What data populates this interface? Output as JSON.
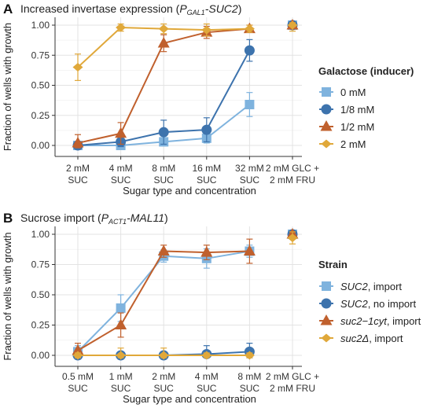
{
  "chart_data": [
    {
      "type": "line",
      "panel_letter": "A",
      "title_prefix": "Increased invertase expression (",
      "title_promoter_main": "P",
      "title_promoter_sub": "GAL1",
      "title_gene": "-SUC2",
      "title_suffix": ")",
      "ylabel": "Fraction of wells with growth",
      "xlabel": "Sugar type and concentration",
      "ylim": [
        0,
        1
      ],
      "yticks": [
        "0.00",
        "0.25",
        "0.50",
        "0.75",
        "1.00"
      ],
      "categories": [
        [
          "2 mM",
          "SUC"
        ],
        [
          "4 mM",
          "SUC"
        ],
        [
          "8 mM",
          "SUC"
        ],
        [
          "16 mM",
          "SUC"
        ],
        [
          "32 mM",
          "SUC"
        ],
        [
          "2 mM GLC +",
          "2 mM FRU"
        ]
      ],
      "legend_title": "Galactose (inducer)",
      "legend_position": "right",
      "grid": true,
      "series": [
        {
          "name": "0 mM",
          "color": "#7fb3de",
          "marker": "square",
          "values": [
            0.0,
            0.0,
            0.03,
            0.06,
            0.34,
            1.0
          ],
          "err": [
            0.02,
            0.02,
            0.03,
            0.04,
            0.1,
            0.03
          ]
        },
        {
          "name": "1/8 mM",
          "color": "#3d73ad",
          "marker": "circle",
          "values": [
            0.0,
            0.03,
            0.11,
            0.13,
            0.79,
            1.0
          ],
          "err": [
            0.02,
            0.04,
            0.1,
            0.1,
            0.09,
            0.03
          ]
        },
        {
          "name": "1/2 mM",
          "color": "#c0602d",
          "marker": "triangle",
          "values": [
            0.02,
            0.1,
            0.85,
            0.94,
            0.97,
            1.0
          ],
          "err": [
            0.07,
            0.09,
            0.07,
            0.05,
            0.03,
            0.03
          ]
        },
        {
          "name": "2 mM",
          "color": "#e0a83a",
          "marker": "diamond",
          "values": [
            0.65,
            0.98,
            0.97,
            0.96,
            0.97,
            1.0
          ],
          "err": [
            0.11,
            0.03,
            0.04,
            0.05,
            0.03,
            0.05
          ]
        }
      ]
    },
    {
      "type": "line",
      "panel_letter": "B",
      "title_prefix": "Sucrose import (",
      "title_promoter_main": "P",
      "title_promoter_sub": "ACT1",
      "title_gene": "-MAL11",
      "title_suffix": ")",
      "ylabel": "Fraction of wells with growth",
      "xlabel": "Sugar type and concentration",
      "ylim": [
        0,
        1
      ],
      "yticks": [
        "0.00",
        "0.25",
        "0.50",
        "0.75",
        "1.00"
      ],
      "categories": [
        [
          "0.5 mM",
          "SUC"
        ],
        [
          "1 mM",
          "SUC"
        ],
        [
          "2 mM",
          "SUC"
        ],
        [
          "4 mM",
          "SUC"
        ],
        [
          "8 mM",
          "SUC"
        ],
        [
          "2 mM GLC +",
          "2 mM FRU"
        ]
      ],
      "legend_title": "Strain",
      "legend_position": "right",
      "grid": true,
      "series": [
        {
          "name_italic": "SUC2",
          "name_rest": ", import",
          "color": "#7fb3de",
          "marker": "square",
          "values": [
            0.03,
            0.39,
            0.82,
            0.8,
            0.86,
            1.0
          ],
          "err": [
            0.05,
            0.11,
            0.05,
            0.08,
            0.05,
            0.03
          ]
        },
        {
          "name_italic": "SUC2",
          "name_rest": ", no import",
          "color": "#3d73ad",
          "marker": "circle",
          "values": [
            0.0,
            0.0,
            0.0,
            0.01,
            0.03,
            1.0
          ],
          "err": [
            0.02,
            0.02,
            0.02,
            0.07,
            0.07,
            0.03
          ]
        },
        {
          "name_italic": "suc2−1cyt",
          "name_rest": ", import",
          "color": "#c0602d",
          "marker": "triangle",
          "values": [
            0.04,
            0.25,
            0.86,
            0.85,
            0.86,
            1.0
          ],
          "err": [
            0.06,
            0.1,
            0.05,
            0.06,
            0.1,
            0.03
          ]
        },
        {
          "name_italic": "suc2Δ",
          "name_rest": ", import",
          "color": "#e0a83a",
          "marker": "diamond",
          "values": [
            0.0,
            0.0,
            0.0,
            0.0,
            0.0,
            0.97
          ],
          "err": [
            0.02,
            0.06,
            0.06,
            0.02,
            0.02,
            0.05
          ]
        }
      ]
    }
  ]
}
